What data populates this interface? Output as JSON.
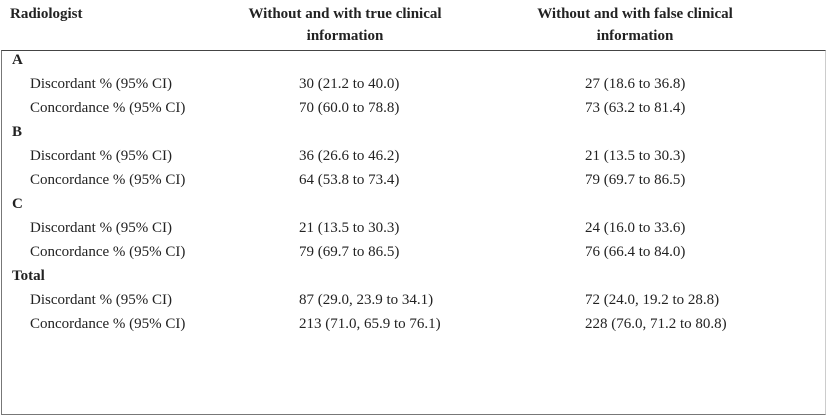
{
  "table": {
    "header": [
      "Radiologist",
      "Without and with true clinical information",
      "Without and with false clinical information"
    ],
    "groups": [
      {
        "name": "A",
        "rows": [
          [
            "Discordant % (95% CI)",
            "30 (21.2 to 40.0)",
            "27 (18.6 to 36.8)"
          ],
          [
            "Concordance % (95% CI)",
            "70 (60.0 to 78.8)",
            "73 (63.2 to 81.4)"
          ]
        ]
      },
      {
        "name": "B",
        "rows": [
          [
            "Discordant % (95% CI)",
            "36 (26.6 to 46.2)",
            "21 (13.5 to 30.3)"
          ],
          [
            "Concordance % (95% CI)",
            "64 (53.8 to 73.4)",
            "79 (69.7 to 86.5)"
          ]
        ]
      },
      {
        "name": "C",
        "rows": [
          [
            "Discordant % (95% CI)",
            "21 (13.5 to 30.3)",
            "24 (16.0 to 33.6)"
          ],
          [
            "Concordance % (95% CI)",
            "79 (69.7 to 86.5)",
            "76 (66.4 to 84.0)"
          ]
        ]
      },
      {
        "name": "Total",
        "rows": [
          [
            "Discordant % (95% CI)",
            "87 (29.0, 23.9 to 34.1)",
            "72 (24.0, 19.2 to 28.8)"
          ],
          [
            "Concordance % (95% CI)",
            "213 (71.0, 65.9 to 76.1)",
            "228 (76.0, 71.2 to 80.8)"
          ]
        ]
      }
    ]
  }
}
